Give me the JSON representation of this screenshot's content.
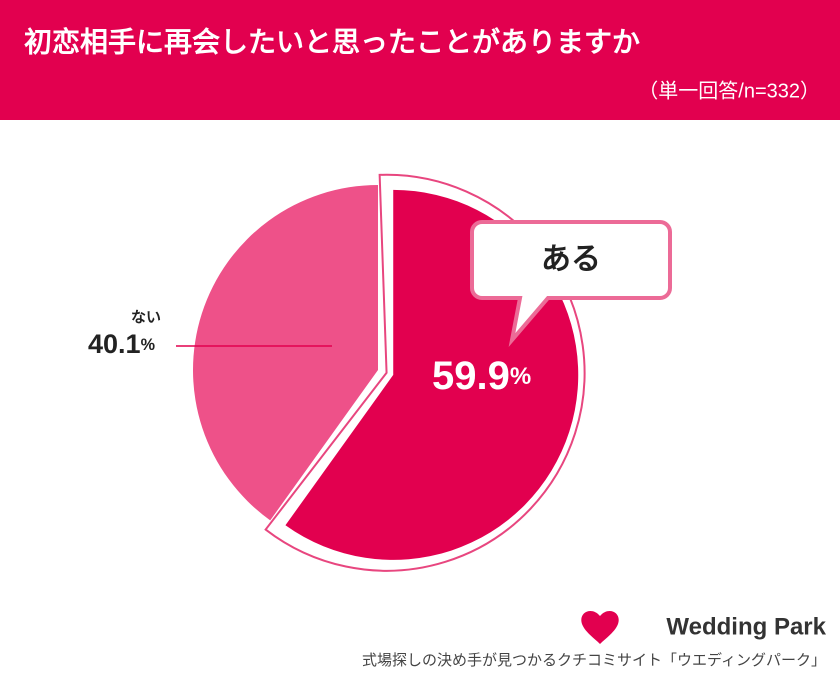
{
  "chart_data": {
    "type": "pie",
    "title": "初恋相手に再会したいと思ったことがありますか",
    "subtitle": "（単一回答/n=332）",
    "categories": [
      "ある",
      "ない"
    ],
    "values": [
      59.9,
      40.1
    ],
    "value_labels": [
      "59.9%",
      "40.1%"
    ],
    "colors": [
      "#e2004f",
      "#ee5189"
    ]
  },
  "footer": {
    "brand": "Wedding Park",
    "tagline": "式場探しの決め手が見つかるクチコミサイト「ウエディングパーク」"
  }
}
